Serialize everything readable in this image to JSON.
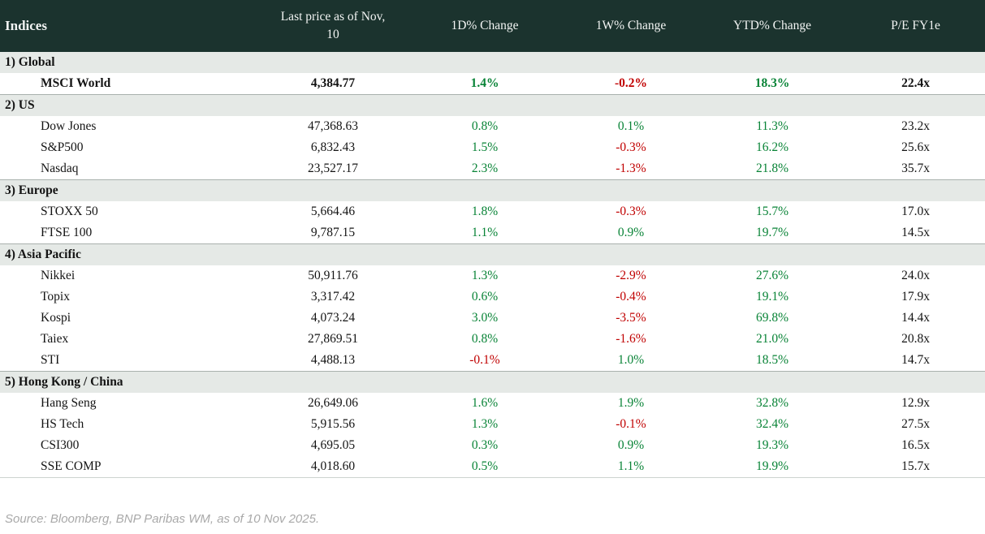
{
  "chart_data": {
    "type": "table",
    "title": "Indices",
    "columns": [
      "Indices",
      "Last price as of Nov, 10",
      "1D% Change",
      "1W% Change",
      "YTD% Change",
      "P/E FY1e"
    ],
    "price_header_line1": "Last price as of Nov,",
    "price_header_line2": "10",
    "sections": [
      {
        "label": "1) Global",
        "rows": [
          {
            "name": "MSCI World",
            "price": "4,384.77",
            "d1": "1.4%",
            "w1": "-0.2%",
            "ytd": "18.3%",
            "pe": "22.4x",
            "bold": true
          }
        ]
      },
      {
        "label": "2) US",
        "rows": [
          {
            "name": "Dow Jones",
            "price": "47,368.63",
            "d1": "0.8%",
            "w1": "0.1%",
            "ytd": "11.3%",
            "pe": "23.2x"
          },
          {
            "name": "S&P500",
            "price": "6,832.43",
            "d1": "1.5%",
            "w1": "-0.3%",
            "ytd": "16.2%",
            "pe": "25.6x"
          },
          {
            "name": "Nasdaq",
            "price": "23,527.17",
            "d1": "2.3%",
            "w1": "-1.3%",
            "ytd": "21.8%",
            "pe": "35.7x"
          }
        ]
      },
      {
        "label": "3) Europe",
        "rows": [
          {
            "name": "STOXX 50",
            "price": "5,664.46",
            "d1": "1.8%",
            "w1": "-0.3%",
            "ytd": "15.7%",
            "pe": "17.0x"
          },
          {
            "name": "FTSE 100",
            "price": "9,787.15",
            "d1": "1.1%",
            "w1": "0.9%",
            "ytd": "19.7%",
            "pe": "14.5x"
          }
        ]
      },
      {
        "label": "4) Asia Pacific",
        "rows": [
          {
            "name": "Nikkei",
            "price": "50,911.76",
            "d1": "1.3%",
            "w1": "-2.9%",
            "ytd": "27.6%",
            "pe": "24.0x"
          },
          {
            "name": "Topix",
            "price": "3,317.42",
            "d1": "0.6%",
            "w1": "-0.4%",
            "ytd": "19.1%",
            "pe": "17.9x"
          },
          {
            "name": "Kospi",
            "price": "4,073.24",
            "d1": "3.0%",
            "w1": "-3.5%",
            "ytd": "69.8%",
            "pe": "14.4x"
          },
          {
            "name": "Taiex",
            "price": "27,869.51",
            "d1": "0.8%",
            "w1": "-1.6%",
            "ytd": "21.0%",
            "pe": "20.8x"
          },
          {
            "name": "STI",
            "price": "4,488.13",
            "d1": "-0.1%",
            "w1": "1.0%",
            "ytd": "18.5%",
            "pe": "14.7x"
          }
        ]
      },
      {
        "label": "5) Hong Kong / China",
        "rows": [
          {
            "name": "Hang Seng",
            "price": "26,649.06",
            "d1": "1.6%",
            "w1": "1.9%",
            "ytd": "32.8%",
            "pe": "12.9x"
          },
          {
            "name": "HS Tech",
            "price": "5,915.56",
            "d1": "1.3%",
            "w1": "-0.1%",
            "ytd": "32.4%",
            "pe": "27.5x"
          },
          {
            "name": "CSI300",
            "price": "4,695.05",
            "d1": "0.3%",
            "w1": "0.9%",
            "ytd": "19.3%",
            "pe": "16.5x"
          },
          {
            "name": "SSE COMP",
            "price": "4,018.60",
            "d1": "0.5%",
            "w1": "1.1%",
            "ytd": "19.9%",
            "pe": "15.7x"
          }
        ]
      }
    ],
    "source": "Source: Bloomberg, BNP Paribas WM, as of 10 Nov 2025.",
    "colors": {
      "header_bg": "#1b332e",
      "header_text": "#f2f4f3",
      "section_bg": "#e5e9e6",
      "positive": "#088336",
      "negative": "#c00000",
      "section_border": "#a9b1ad",
      "footer_text": "#a9a9a9"
    },
    "layout": {
      "legend": "none",
      "grid": "off"
    }
  }
}
